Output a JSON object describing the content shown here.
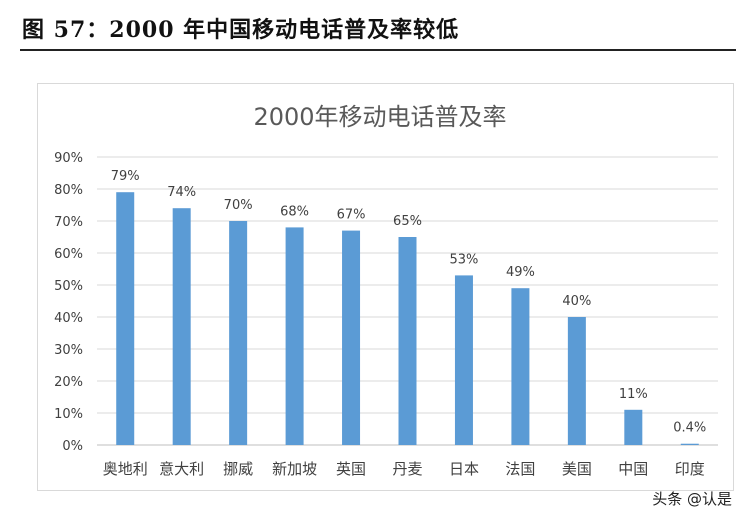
{
  "caption": "图 57：2000 年中国移动电话普及率较低",
  "watermark": "头条 @认是",
  "chart_data": {
    "type": "bar",
    "title": "2000年移动电话普及率",
    "categories": [
      "奥地利",
      "意大利",
      "挪威",
      "新加坡",
      "英国",
      "丹麦",
      "日本",
      "法国",
      "美国",
      "中国",
      "印度"
    ],
    "values": [
      79,
      74,
      70,
      68,
      67,
      65,
      53,
      49,
      40,
      11,
      0.4
    ],
    "data_labels": [
      "79%",
      "74%",
      "70%",
      "68%",
      "67%",
      "65%",
      "53%",
      "49%",
      "40%",
      "11%",
      "0.4%"
    ],
    "ylim": [
      0,
      90
    ],
    "yticks": [
      "0%",
      "10%",
      "20%",
      "30%",
      "40%",
      "50%",
      "60%",
      "70%",
      "80%",
      "90%"
    ],
    "grid": true,
    "legend": "none",
    "bar_color": "#5b9bd5"
  }
}
